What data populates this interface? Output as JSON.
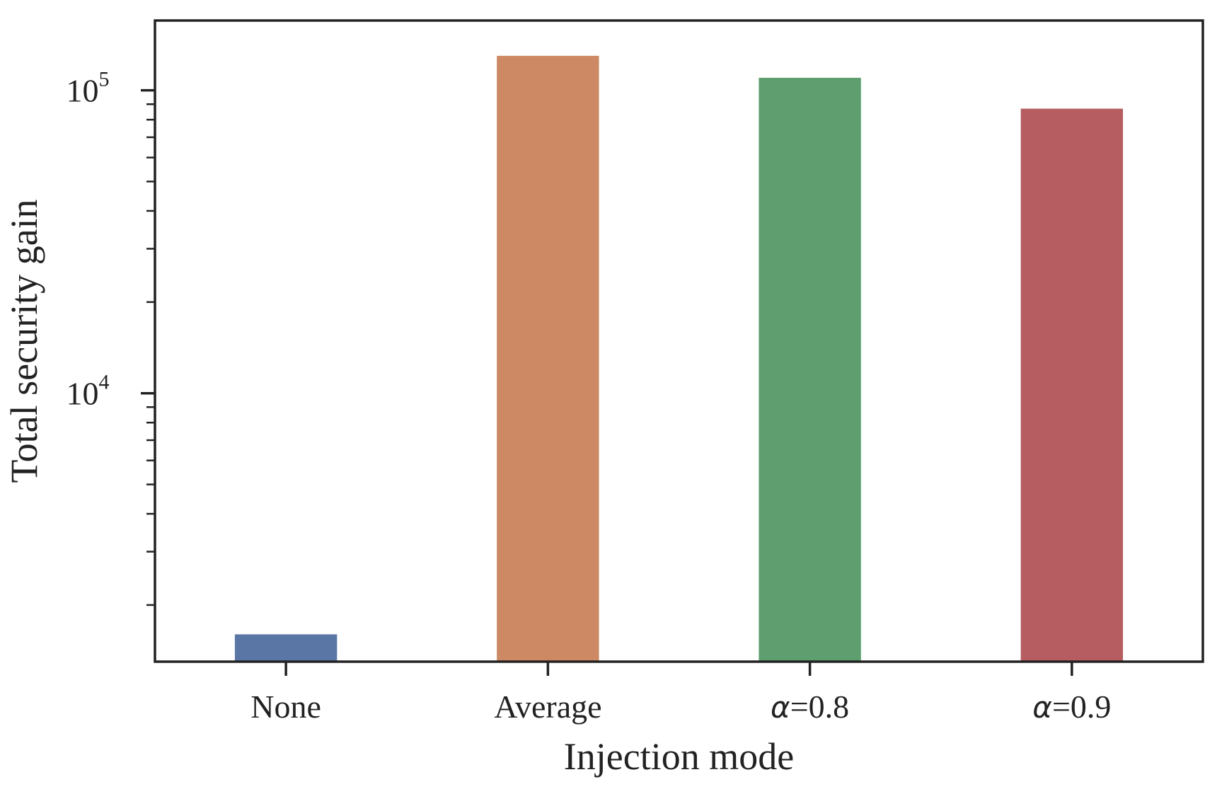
{
  "chart_data": {
    "type": "bar",
    "categories": [
      "None",
      "Average",
      "α=0.8",
      "α=0.9"
    ],
    "category_parts": [
      {
        "symbol": "",
        "text": "None"
      },
      {
        "symbol": "",
        "text": "Average"
      },
      {
        "symbol": "α",
        "text": "=0.8"
      },
      {
        "symbol": "α",
        "text": "=0.9"
      }
    ],
    "values": [
      1600,
      130000,
      110000,
      87000
    ],
    "colors": [
      "#5a76a5",
      "#cc8963",
      "#5f9e6e",
      "#b55d60"
    ],
    "xlabel": "Injection mode",
    "ylabel": "Total security gain",
    "yscale": "log",
    "ylim": [
      1300,
      170000
    ],
    "major_ticks": [
      {
        "value": 10000,
        "base": "10",
        "exp": "4"
      },
      {
        "value": 100000,
        "base": "10",
        "exp": "5"
      }
    ],
    "minor_ticks": [
      2000,
      3000,
      4000,
      5000,
      6000,
      7000,
      8000,
      9000,
      20000,
      30000,
      40000,
      50000,
      60000,
      70000,
      80000,
      90000
    ],
    "grid": false,
    "axis_color": "#222222"
  }
}
